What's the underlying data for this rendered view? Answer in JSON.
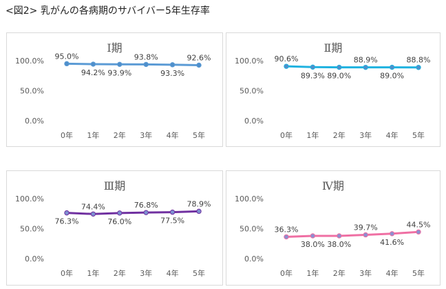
{
  "page_title": "<図2> 乳がんの各病期のサバイバー5年生存率",
  "chart_data": [
    {
      "type": "line",
      "title": "Ⅰ期",
      "categories": [
        "0年",
        "1年",
        "2年",
        "3年",
        "4年",
        "5年"
      ],
      "yticks": [
        "0.0%",
        "50.0%",
        "100.0%"
      ],
      "ylim": [
        0,
        100
      ],
      "values": [
        95.0,
        94.2,
        93.9,
        93.8,
        93.3,
        92.6
      ],
      "labels": [
        "95.0%",
        "94.2%",
        "93.9%",
        "93.8%",
        "93.3%",
        "92.6%"
      ],
      "label_positions": [
        "above",
        "below",
        "below",
        "above",
        "below",
        "above"
      ],
      "line_color": "#5b9bd5",
      "marker_color": "#4f8fcb"
    },
    {
      "type": "line",
      "title": "Ⅱ期",
      "categories": [
        "0年",
        "1年",
        "2年",
        "3年",
        "4年",
        "5年"
      ],
      "yticks": [
        "0.0%",
        "50.0%",
        "100.0%"
      ],
      "ylim": [
        0,
        100
      ],
      "values": [
        90.6,
        89.3,
        89.0,
        88.9,
        89.0,
        88.8
      ],
      "labels": [
        "90.6%",
        "89.3%",
        "89.0%",
        "88.9%",
        "89.0%",
        "88.8%"
      ],
      "label_positions": [
        "above",
        "below",
        "below",
        "above",
        "below",
        "above"
      ],
      "line_color": "#1fb2e0",
      "marker_color": "#4f8fcb"
    },
    {
      "type": "line",
      "title": "Ⅲ期",
      "categories": [
        "0年",
        "1年",
        "2年",
        "3年",
        "4年",
        "5年"
      ],
      "yticks": [
        "0.0%",
        "50.0%",
        "100.0%"
      ],
      "ylim": [
        0,
        100
      ],
      "values": [
        76.3,
        74.4,
        76.0,
        76.8,
        77.5,
        78.9
      ],
      "labels": [
        "76.3%",
        "74.4%",
        "76.0%",
        "76.8%",
        "77.5%",
        "78.9%"
      ],
      "label_positions": [
        "below",
        "above",
        "below",
        "above",
        "below",
        "above"
      ],
      "line_color": "#7030a0",
      "marker_color": "#7d8fd0"
    },
    {
      "type": "line",
      "title": "Ⅳ期",
      "categories": [
        "0年",
        "1年",
        "2年",
        "3年",
        "4年",
        "5年"
      ],
      "yticks": [
        "0.0%",
        "50.0%",
        "100.0%"
      ],
      "ylim": [
        0,
        100
      ],
      "values": [
        36.3,
        38.0,
        38.0,
        39.7,
        41.6,
        44.5
      ],
      "labels": [
        "36.3%",
        "38.0%",
        "38.0%",
        "39.7%",
        "41.6%",
        "44.5%"
      ],
      "label_positions": [
        "above",
        "below",
        "below",
        "above",
        "below",
        "above"
      ],
      "line_color": "#ef6fa3",
      "marker_color": "#8d8fd0"
    }
  ]
}
